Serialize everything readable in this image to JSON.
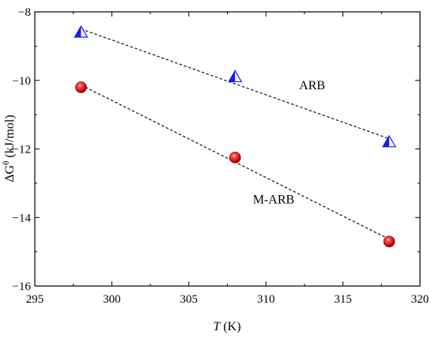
{
  "chart_data": {
    "type": "scatter",
    "x_axis": {
      "label_italic": "T",
      "label_unit": " (K)",
      "range": [
        295,
        320
      ],
      "ticks": [
        295,
        300,
        305,
        310,
        315,
        320
      ],
      "tick_labels": [
        "295",
        "300",
        "305",
        "310",
        "315",
        "320"
      ]
    },
    "y_axis": {
      "label_prefix": "ΔG",
      "label_superscript": "θ",
      "label_unit": " (kJ/mol)",
      "range": [
        -16,
        -8
      ],
      "ticks": [
        -16,
        -14,
        -12,
        -10,
        -8
      ],
      "tick_labels": [
        "−16",
        "−14",
        "−12",
        "−10",
        "−8"
      ]
    },
    "grid": false,
    "series": [
      {
        "name": "ARB",
        "marker": "triangle",
        "color": "#1a1aff",
        "fit_line": "dashed",
        "x": [
          298,
          308,
          318
        ],
        "y": [
          -8.6,
          -9.9,
          -11.8
        ]
      },
      {
        "name": "M-ARB",
        "marker": "sphere",
        "color": "#e81010",
        "fit_line": "dashed",
        "x": [
          298,
          308,
          318
        ],
        "y": [
          -10.2,
          -12.25,
          -14.7
        ]
      }
    ]
  }
}
